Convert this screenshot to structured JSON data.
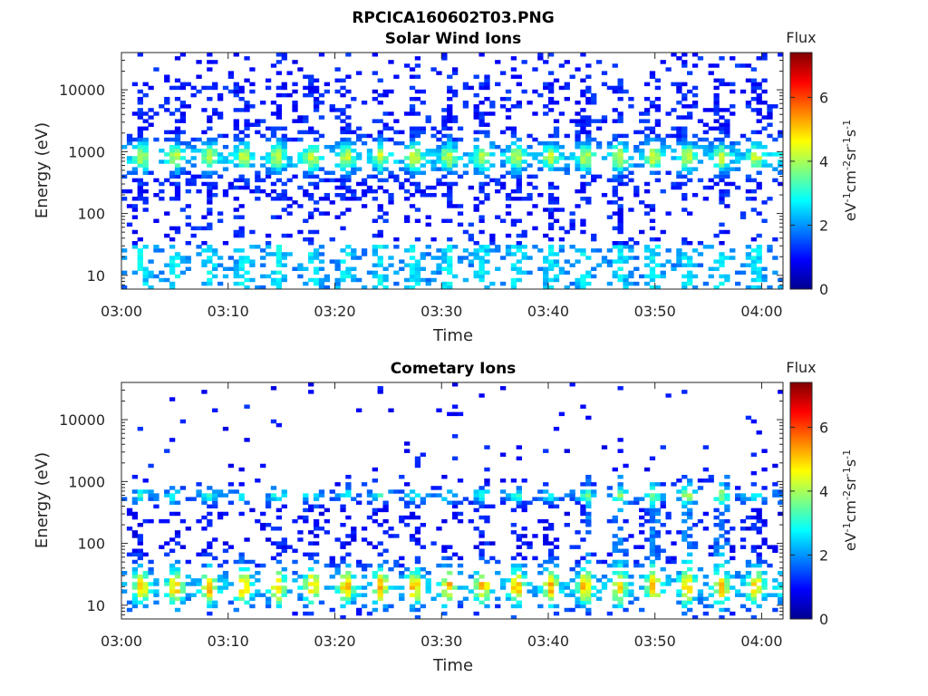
{
  "figure": {
    "title": "RPCICA160602T03.PNG"
  },
  "colors": {
    "axis": "#262626",
    "title": "#000000",
    "background": "#ffffff"
  },
  "chart_data": [
    {
      "type": "heatmap",
      "title": "Solar Wind Ions",
      "xlabel": "Time",
      "ylabel": "Energy (eV)",
      "x_ticks": [
        "03:00",
        "03:10",
        "03:20",
        "03:30",
        "03:40",
        "03:50",
        "04:00"
      ],
      "x_range": [
        "03:00",
        "04:02"
      ],
      "y_scale": "log",
      "y_ticks": [
        10,
        100,
        1000,
        10000
      ],
      "y_tick_labels": [
        "10",
        "100",
        "1000",
        "10000"
      ],
      "y_range": [
        6,
        40000
      ],
      "colorbar": {
        "title": "Flux",
        "label": "eV-1cm-2sr-1s-1",
        "label_base": "eV",
        "label_exp1": "-1",
        "label_mid1": "cm",
        "label_exp2": "-2",
        "label_mid2": "sr",
        "label_exp3": "-1",
        "label_mid3": "s",
        "label_exp4": "-1",
        "range": [
          0,
          7.4
        ],
        "ticks": [
          0,
          2,
          4,
          6
        ],
        "tick_labels": [
          "0",
          "2",
          "4",
          "6"
        ],
        "colormap": "jet"
      },
      "features": {
        "peak_energy_band_eV": [
          450,
          1500
        ],
        "peak_flux": 4.3,
        "low_energy_band_eV": [
          6,
          30
        ],
        "low_energy_flux": 2.7,
        "background_flux": 1.1,
        "pulse_period_min": 3.2
      }
    },
    {
      "type": "heatmap",
      "title": "Cometary Ions",
      "xlabel": "Time",
      "ylabel": "Energy (eV)",
      "x_ticks": [
        "03:00",
        "03:10",
        "03:20",
        "03:30",
        "03:40",
        "03:50",
        "04:00"
      ],
      "x_range": [
        "03:00",
        "04:02"
      ],
      "y_scale": "log",
      "y_ticks": [
        10,
        100,
        1000,
        10000
      ],
      "y_tick_labels": [
        "10",
        "100",
        "1000",
        "10000"
      ],
      "y_range": [
        6,
        40000
      ],
      "colorbar": {
        "title": "Flux",
        "label": "eV-1cm-2sr-1s-1",
        "label_base": "eV",
        "label_exp1": "-1",
        "label_mid1": "cm",
        "label_exp2": "-2",
        "label_mid2": "sr",
        "label_exp3": "-1",
        "label_mid3": "s",
        "label_exp4": "-1",
        "range": [
          0,
          7.4
        ],
        "ticks": [
          0,
          2,
          4,
          6
        ],
        "tick_labels": [
          "0",
          "2",
          "4",
          "6"
        ],
        "colormap": "jet"
      },
      "features": {
        "peak_energy_band_eV": [
          9,
          40
        ],
        "peak_flux": 5.2,
        "mid_energy_band_eV": [
          400,
          900
        ],
        "mid_flux": 3.0,
        "background_flux": 1.0,
        "pulse_period_min": 3.2
      }
    }
  ]
}
